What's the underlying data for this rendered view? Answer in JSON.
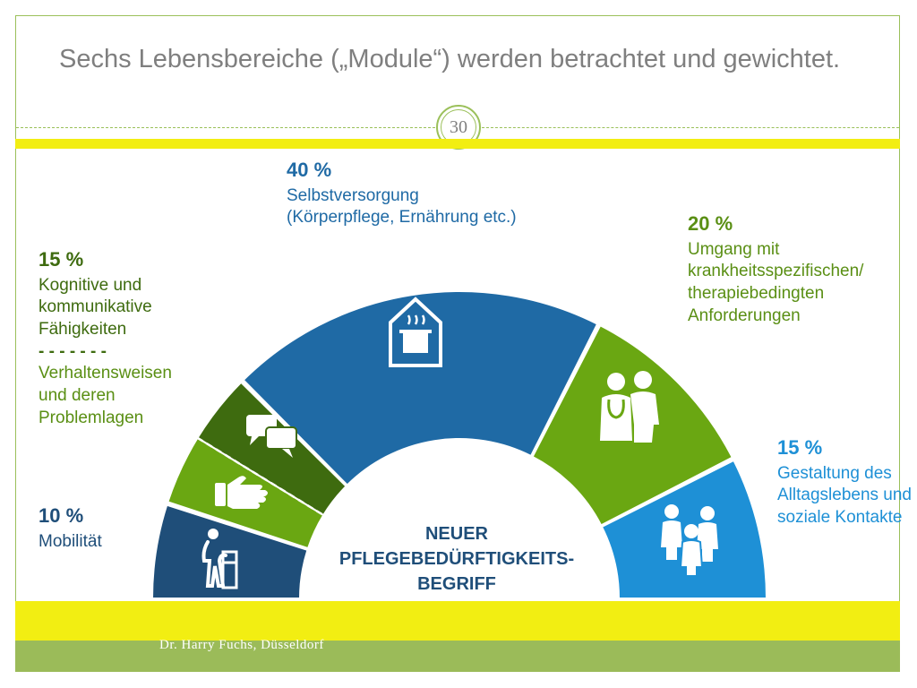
{
  "slide": {
    "title": "Sechs Lebensbereiche („Module“) werden betrachtet und gewichtet.",
    "page_number": "30",
    "author": "Dr. Harry Fuchs, Düsseldorf"
  },
  "center": {
    "line1": "NEUER",
    "line2": "PFLEGEBEDÜRFTIGKEITS-",
    "line3": "BEGRIFF"
  },
  "modules": {
    "mobility": {
      "percent": "10 %",
      "text": "Mobilität",
      "weight": 10,
      "color": "#1f4e79",
      "icon": "walker-icon"
    },
    "cognitive": {
      "percent": "15 %",
      "text1": "Kognitive und kommunikative Fähigkeiten",
      "separator": "- - - - - - -",
      "text2": "Verhaltensweisen und deren Problemlagen",
      "weight": 15,
      "colors": [
        "#6aa712",
        "#3e6b0f"
      ],
      "icons": [
        "hand-icon",
        "speech-bubbles-icon"
      ]
    },
    "selfcare": {
      "percent": "40 %",
      "text1": "Selbstversorgung",
      "text2": "(Körperpflege, Ernährung etc.)",
      "weight": 40,
      "color": "#1f6aa5",
      "icon": "house-pot-icon"
    },
    "therapy": {
      "percent": "20 %",
      "text": "Umgang mit krankheitsspezifischen/ therapiebedingten Anforderungen",
      "weight": 20,
      "color": "#6aa712",
      "icon": "doctor-patient-icon"
    },
    "social": {
      "percent": "15 %",
      "text": "Gestaltung des Alltagslebens und soziale Kontakte",
      "weight": 15,
      "color": "#1e90d6",
      "icon": "people-group-icon"
    }
  }
}
